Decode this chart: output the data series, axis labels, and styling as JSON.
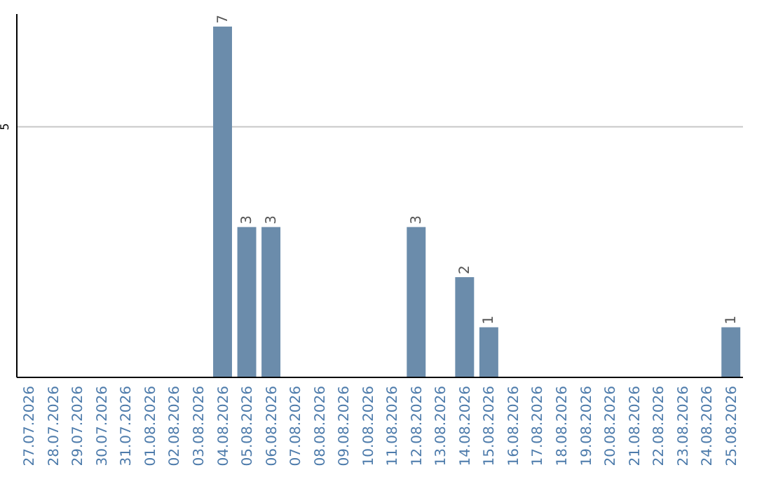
{
  "chart_data": {
    "type": "bar",
    "categories": [
      "27.07.2026",
      "28.07.2026",
      "29.07.2026",
      "30.07.2026",
      "31.07.2026",
      "01.08.2026",
      "02.08.2026",
      "03.08.2026",
      "04.08.2026",
      "05.08.2026",
      "06.08.2026",
      "07.08.2026",
      "08.08.2026",
      "09.08.2026",
      "10.08.2026",
      "11.08.2026",
      "12.08.2026",
      "13.08.2026",
      "14.08.2026",
      "15.08.2026",
      "16.08.2026",
      "17.08.2026",
      "18.08.2026",
      "19.08.2026",
      "20.08.2026",
      "21.08.2026",
      "22.08.2026",
      "23.08.2026",
      "24.08.2026",
      "25.08.2026"
    ],
    "values": [
      0,
      0,
      0,
      0,
      0,
      0,
      0,
      0,
      7,
      3,
      3,
      0,
      0,
      0,
      0,
      0,
      3,
      0,
      2,
      1,
      0,
      0,
      0,
      0,
      0,
      0,
      0,
      0,
      0,
      1
    ],
    "value_labels": [
      null,
      null,
      null,
      null,
      null,
      null,
      null,
      null,
      "7",
      "3",
      "3",
      null,
      null,
      null,
      null,
      null,
      "3",
      null,
      "2",
      "1",
      null,
      null,
      null,
      null,
      null,
      null,
      null,
      null,
      null,
      "1"
    ],
    "color": "#6b8cab",
    "ylim": [
      0,
      7.25
    ],
    "yticks": [
      5
    ],
    "grid": "y"
  }
}
